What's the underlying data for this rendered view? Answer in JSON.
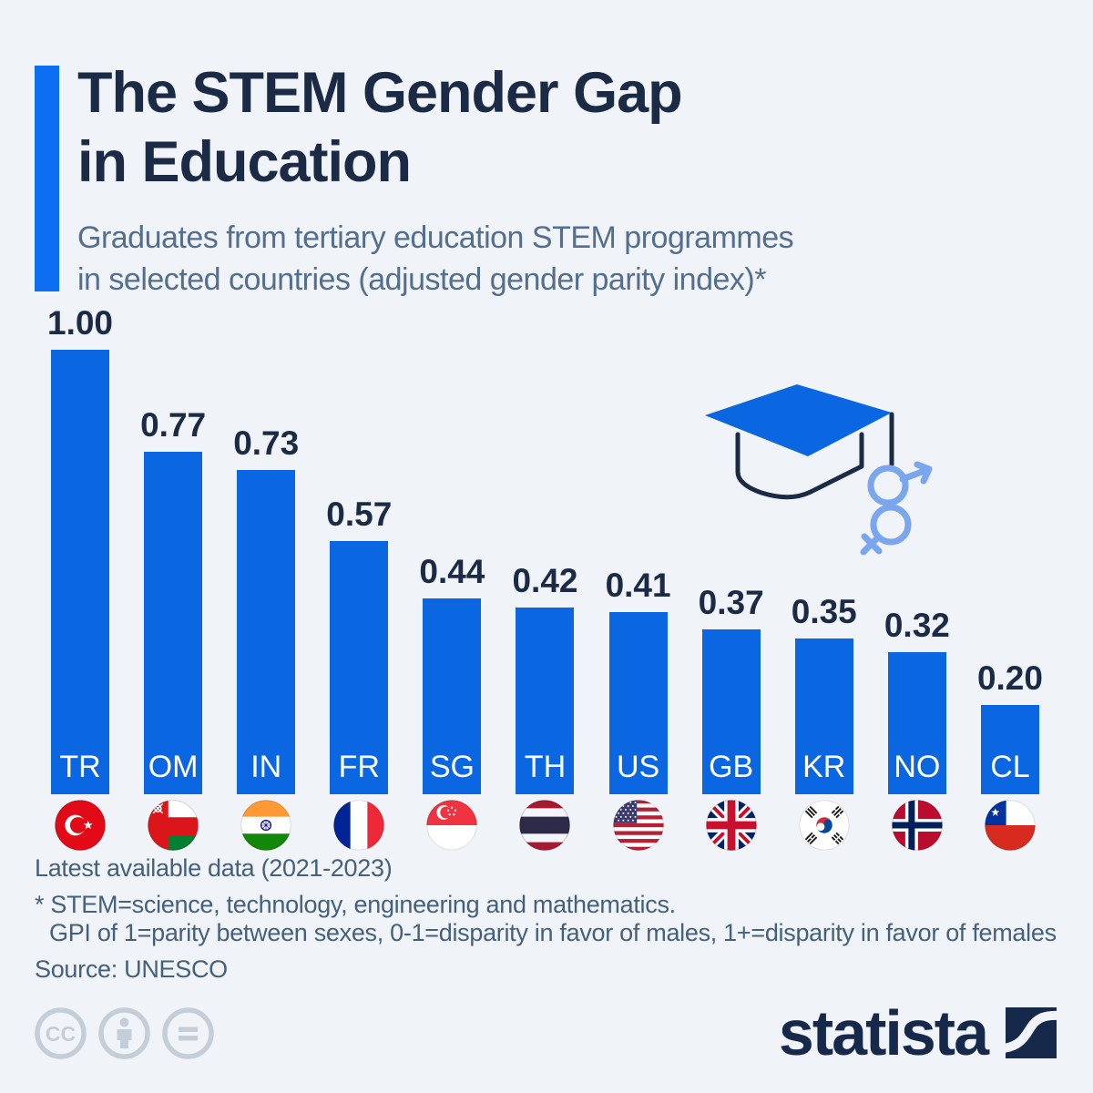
{
  "page": {
    "background_color": "#f0f4f8",
    "accent_color": "#0d6ef2"
  },
  "header": {
    "title_line1": "The STEM Gender Gap",
    "title_line2": "in Education",
    "subtitle_line1": "Graduates from tertiary education STEM programmes",
    "subtitle_line2": "in selected countries (adjusted gender parity index)*"
  },
  "chart_data": {
    "type": "bar",
    "title": "The STEM Gender Gap in Education",
    "categories": [
      "TR",
      "OM",
      "IN",
      "FR",
      "SG",
      "TH",
      "US",
      "GB",
      "KR",
      "NO",
      "CL"
    ],
    "values": [
      1.0,
      0.77,
      0.73,
      0.57,
      0.44,
      0.42,
      0.41,
      0.37,
      0.35,
      0.32,
      0.2
    ],
    "value_labels": [
      "1.00",
      "0.77",
      "0.73",
      "0.57",
      "0.44",
      "0.42",
      "0.41",
      "0.37",
      "0.35",
      "0.32",
      "0.20"
    ],
    "flag_icons": [
      "flag-turkey",
      "flag-oman",
      "flag-india",
      "flag-france",
      "flag-singapore",
      "flag-thailand",
      "flag-united-states",
      "flag-united-kingdom",
      "flag-south-korea",
      "flag-norway",
      "flag-chile"
    ],
    "bar_color": "#0b66e2",
    "ylim": [
      0,
      1.0
    ],
    "grid": false,
    "legend": "none",
    "value_label_position": "above-bar",
    "category_label_position": "inside-bar-bottom"
  },
  "decoration": {
    "icon": "graduation-cap-gender-icon"
  },
  "footnotes": {
    "line1": "Latest available data (2021-2023)",
    "line2": "* STEM=science, technology, engineering and mathematics.",
    "line3": "GPI of 1=parity between sexes, 0-1=disparity in favor of males, 1+=disparity in favor of females",
    "source": "Source: UNESCO"
  },
  "footer": {
    "license_icons": [
      "cc-icon",
      "cc-by-icon",
      "cc-nd-icon"
    ],
    "brand": "statista"
  }
}
